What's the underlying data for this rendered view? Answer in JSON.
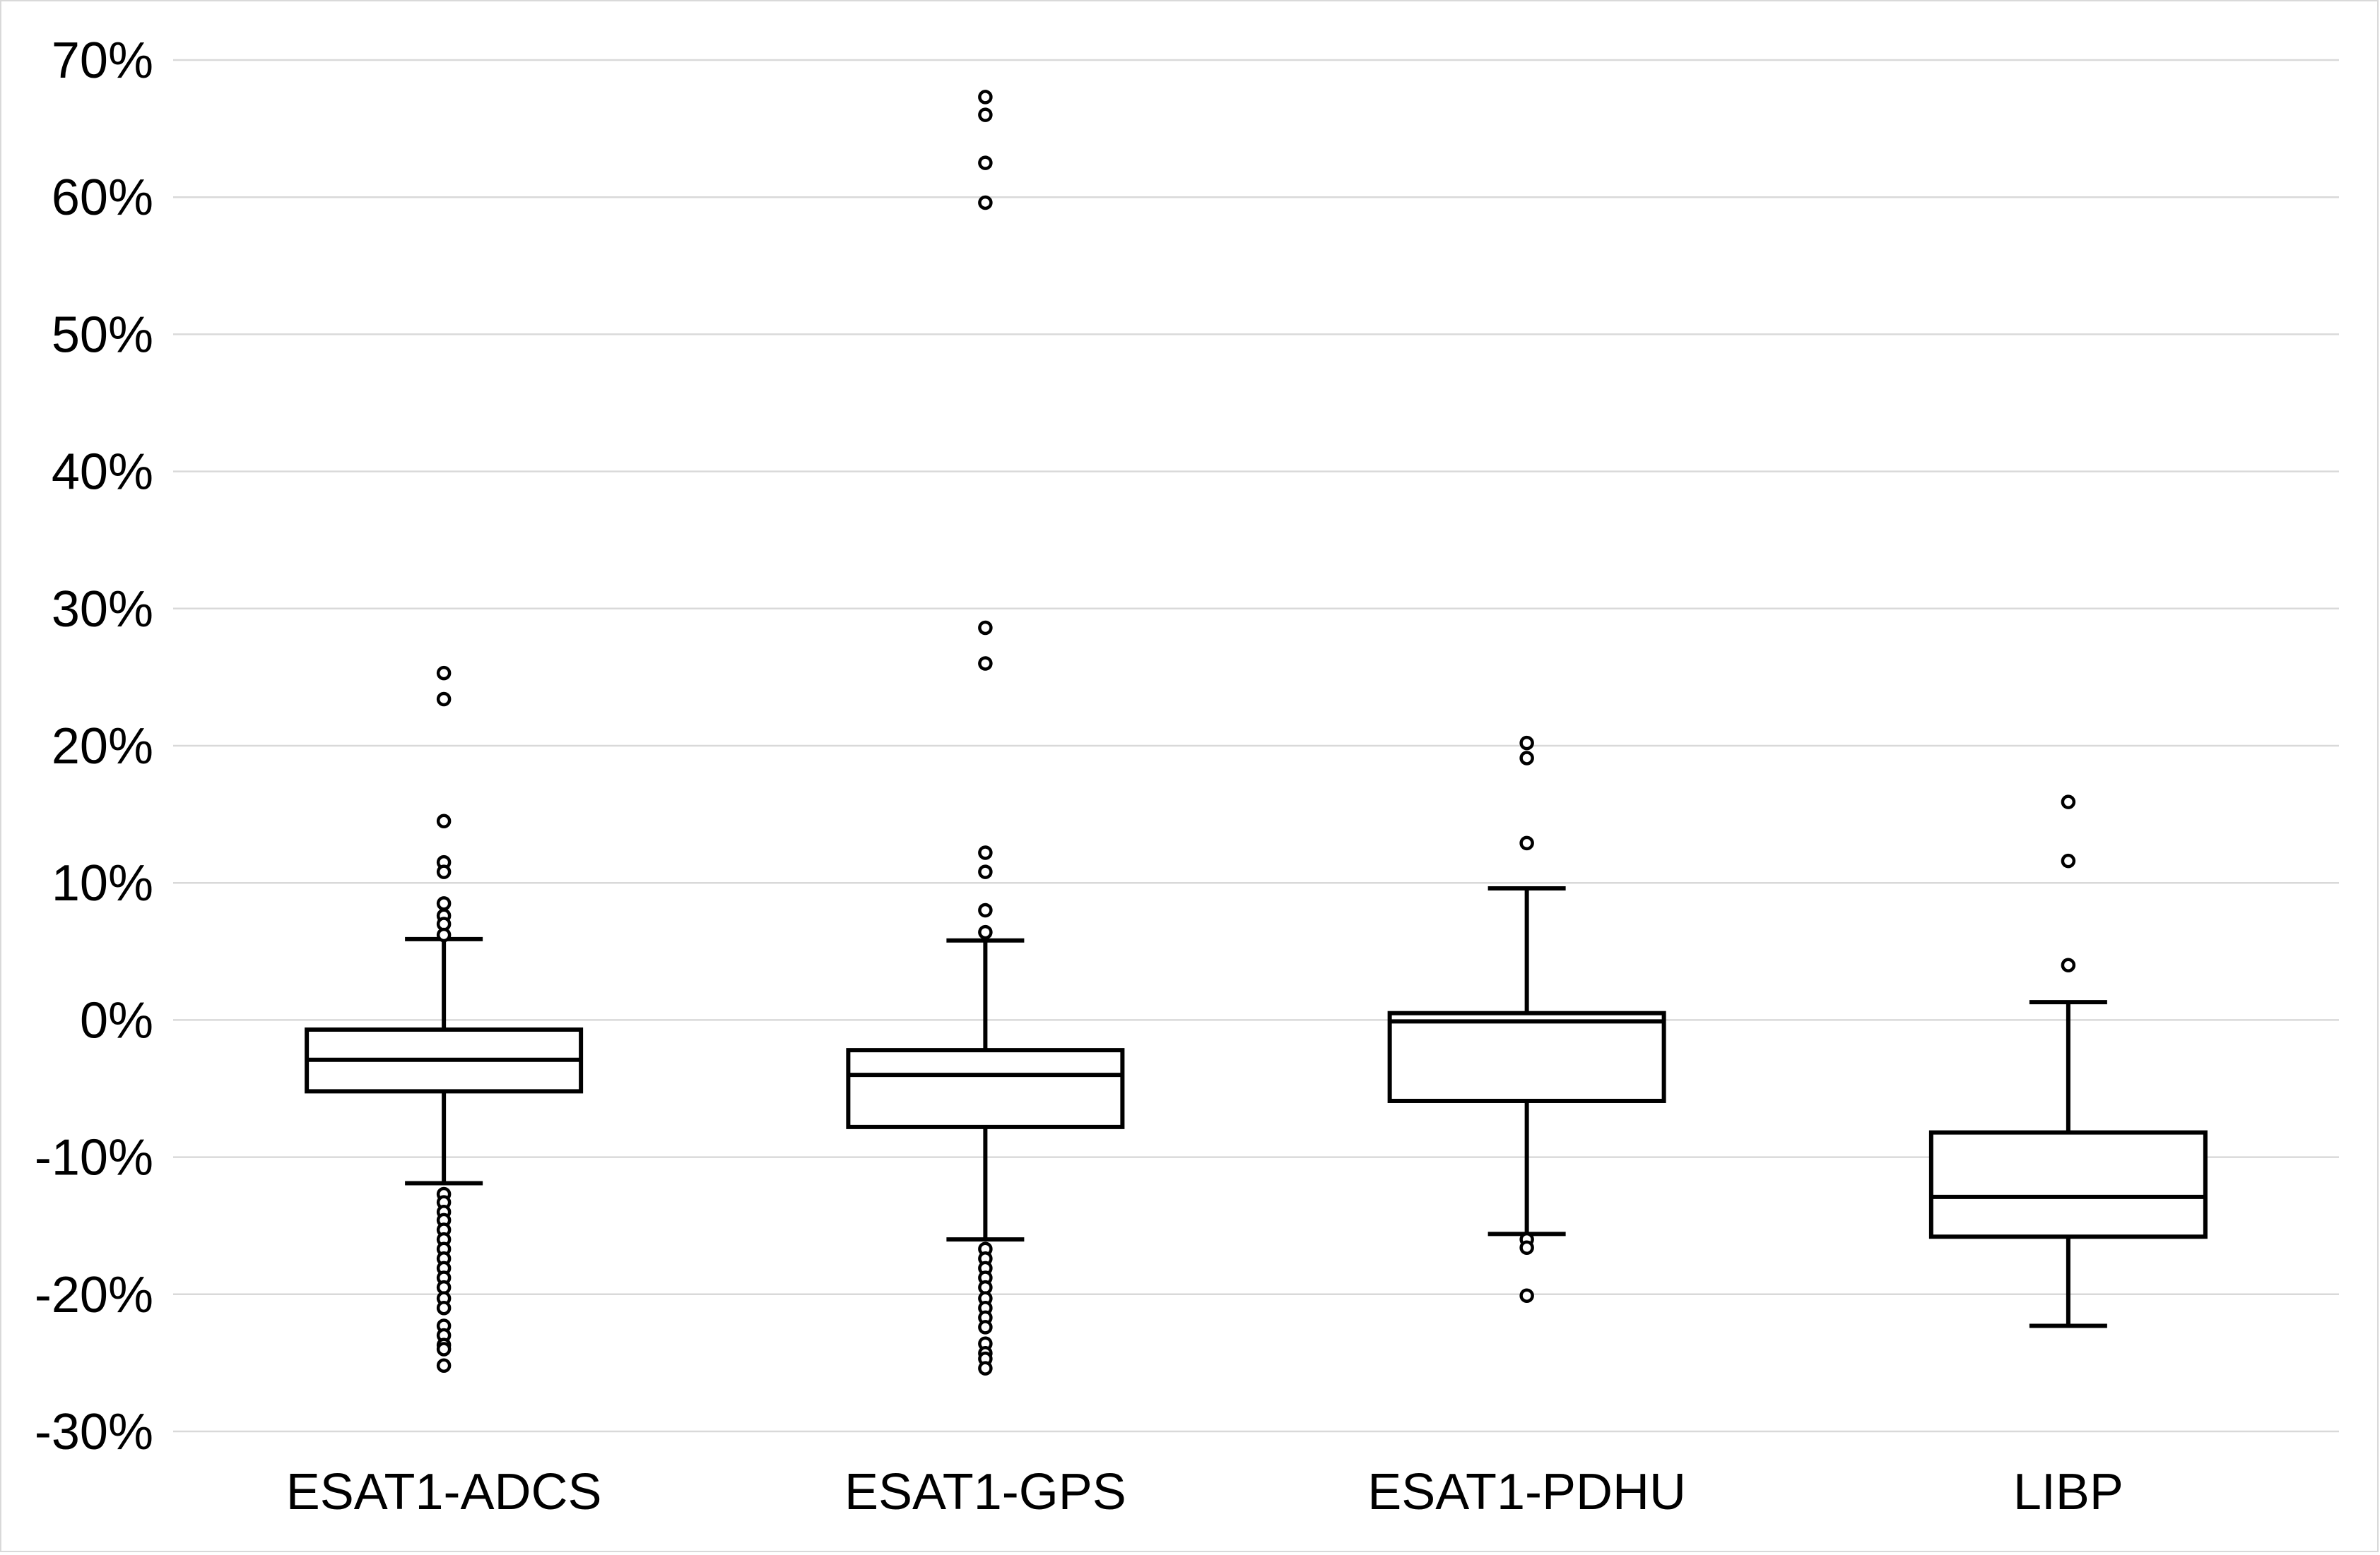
{
  "chart_data": {
    "type": "box",
    "categories": [
      "ESAT1-ADCS",
      "ESAT1-GPS",
      "ESAT1-PDHU",
      "LIBP"
    ],
    "y_unit": "%",
    "ylim": [
      -30,
      70
    ],
    "yticks": [
      -30,
      -20,
      -10,
      0,
      10,
      20,
      30,
      40,
      50,
      60,
      70
    ],
    "grid": true,
    "legend": "none",
    "series": [
      {
        "whisker_low": -11.9,
        "q1": -5.2,
        "median": -2.9,
        "q3": -0.7,
        "whisker_high": 5.9,
        "outliers": [
          25.3,
          23.4,
          14.5,
          11.5,
          10.8,
          8.5,
          7.6,
          7.0,
          6.2,
          -12.7,
          -13.3,
          -14.0,
          -14.6,
          -15.3,
          -16.0,
          -16.7,
          -17.4,
          -18.1,
          -18.8,
          -19.5,
          -20.3,
          -21.0,
          -22.3,
          -23.0,
          -23.7,
          -24.0,
          -25.2
        ]
      },
      {
        "whisker_low": -16.0,
        "q1": -7.8,
        "median": -4.0,
        "q3": -2.2,
        "whisker_high": 5.8,
        "outliers": [
          67.3,
          66.0,
          62.5,
          59.6,
          28.6,
          26.0,
          12.2,
          10.8,
          8.0,
          6.4,
          -16.7,
          -17.4,
          -18.1,
          -18.8,
          -19.5,
          -20.3,
          -21.0,
          -21.7,
          -22.4,
          -23.6,
          -24.3,
          -24.7,
          -25.4
        ]
      },
      {
        "whisker_low": -15.6,
        "q1": -5.9,
        "median": -0.1,
        "q3": 0.5,
        "whisker_high": 9.6,
        "outliers": [
          20.2,
          19.1,
          12.9,
          -16.0,
          -16.6,
          -20.1
        ]
      },
      {
        "whisker_low": -22.3,
        "q1": -15.8,
        "median": -12.9,
        "q3": -8.2,
        "whisker_high": 1.3,
        "outliers": [
          15.9,
          11.6,
          4.0
        ]
      }
    ],
    "colors": {
      "grid": "#d9d9d9",
      "box": "#000000",
      "background": "#ffffff"
    }
  }
}
